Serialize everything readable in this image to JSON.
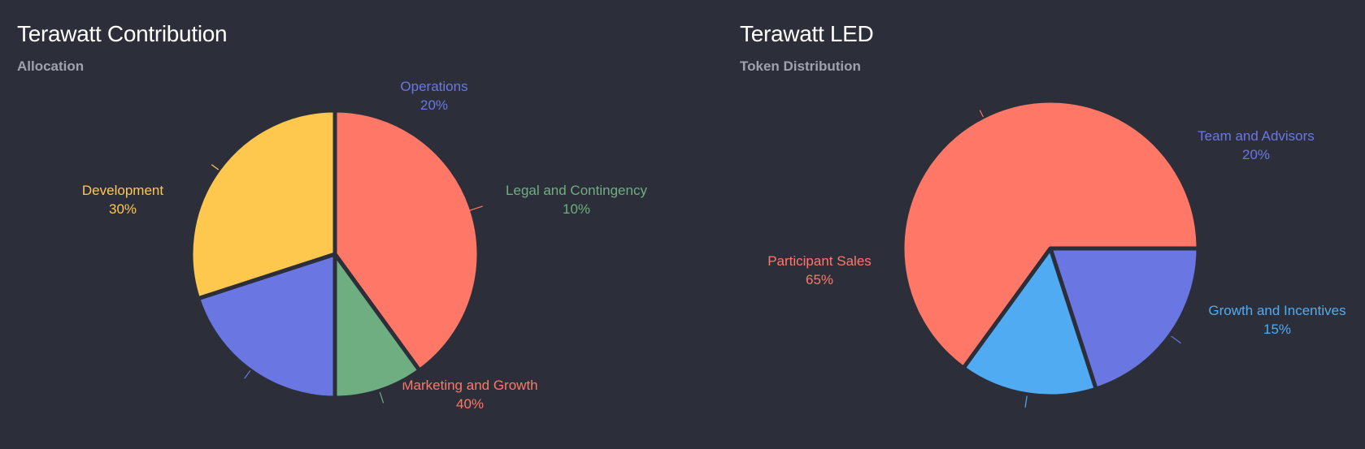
{
  "chart_data": [
    {
      "type": "pie",
      "title": "Terawatt Contribution",
      "subtitle": "Allocation",
      "slices": [
        {
          "label": "Marketing and Growth",
          "value": 40,
          "value_label": "40%",
          "color": "#fe7767"
        },
        {
          "label": "Legal and Contingency",
          "value": 10,
          "value_label": "10%",
          "color": "#6fae80"
        },
        {
          "label": "Operations",
          "value": 20,
          "value_label": "20%",
          "color": "#6a77e3"
        },
        {
          "label": "Development",
          "value": 30,
          "value_label": "30%",
          "color": "#fec84e"
        }
      ]
    },
    {
      "type": "pie",
      "title": "Terawatt LED",
      "subtitle": "Token Distribution",
      "slices": [
        {
          "label": "Team and Advisors",
          "value": 20,
          "value_label": "20%",
          "color": "#6a77e3"
        },
        {
          "label": "Growth and Incentives",
          "value": 15,
          "value_label": "15%",
          "color": "#51abf2"
        },
        {
          "label": "Participant Sales",
          "value": 65,
          "value_label": "65%",
          "color": "#fe7767"
        }
      ]
    }
  ],
  "colors": {
    "background": "#2c2f3a",
    "title": "#ffffff",
    "subtitle": "#9ea2ad"
  }
}
